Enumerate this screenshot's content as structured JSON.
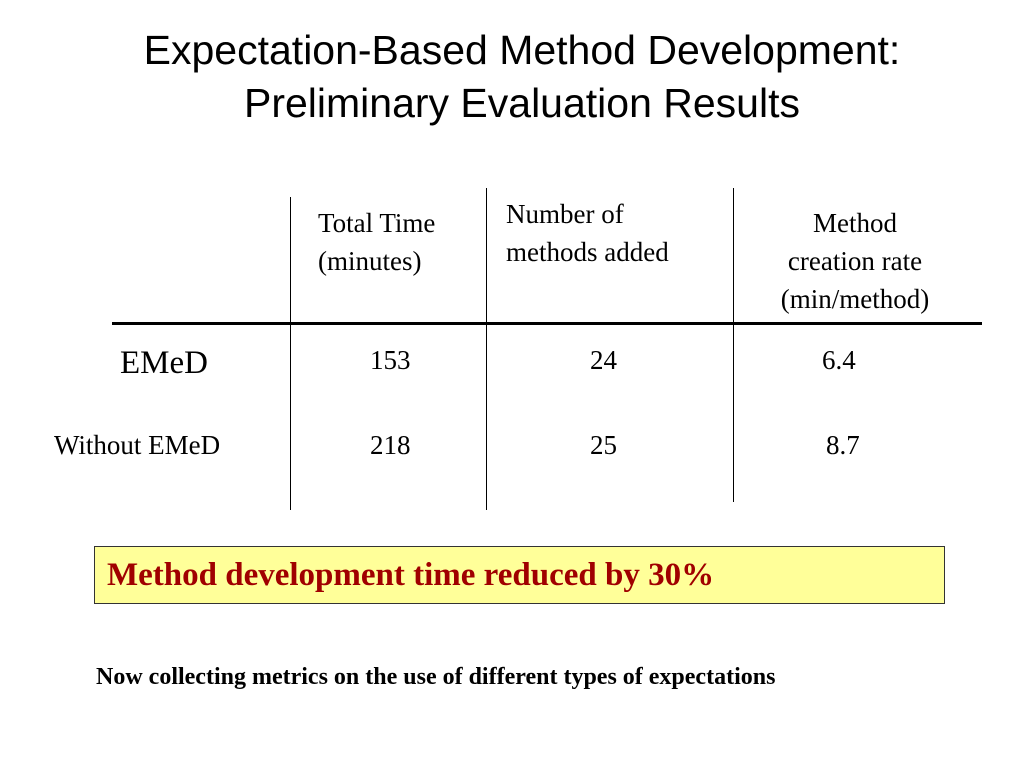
{
  "title": {
    "line1": "Expectation-Based Method Development:",
    "line2": "Preliminary Evaluation Results"
  },
  "table": {
    "headers": [
      {
        "line1": "Total Time",
        "line2": "(minutes)",
        "line3": ""
      },
      {
        "line1": "Number of",
        "line2": "methods added",
        "line3": ""
      },
      {
        "line1": "Method",
        "line2": "creation rate",
        "line3": "(min/method)"
      }
    ],
    "rows": [
      {
        "label": "EMeD",
        "values": [
          "153",
          "24",
          "6.4"
        ]
      },
      {
        "label": "Without EMeD",
        "values": [
          "218",
          "25",
          "8.7"
        ]
      }
    ]
  },
  "callout": {
    "text": "Method development time reduced by 30%",
    "background": "#ffff99",
    "text_color": "#a00000"
  },
  "footnote": "Now collecting metrics on the use of different types of expectations"
}
